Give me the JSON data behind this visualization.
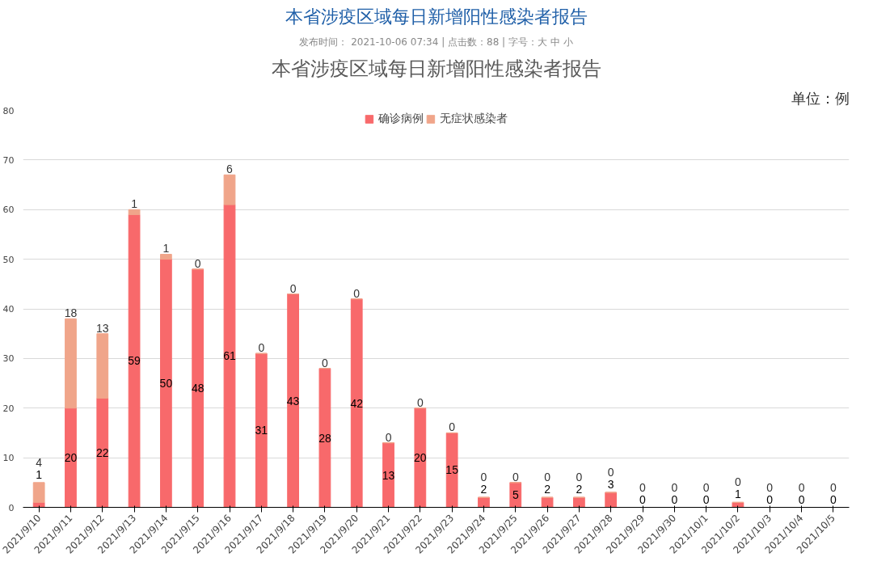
{
  "chart_data": {
    "type": "bar",
    "title": "本省涉疫区域每日新增阳性感染者报告",
    "annotations": [
      "本省涉疫区域每日新增阳性感染者报告",
      "发布时间： 2021-10-06 07:34 | 点击数：88 | 字号：大 中 小",
      "单位：例"
    ],
    "categories": [
      "2021/9/10",
      "2021/9/11",
      "2021/9/12",
      "2021/9/13",
      "2021/9/14",
      "2021/9/15",
      "2021/9/16",
      "2021/9/17",
      "2021/9/18",
      "2021/9/19",
      "2021/9/20",
      "2021/9/21",
      "2021/9/22",
      "2021/9/23",
      "2021/9/24",
      "2021/9/25",
      "2021/9/26",
      "2021/9/27",
      "2021/9/28",
      "2021/9/29",
      "2021/9/30",
      "2021/10/1",
      "2021/10/2",
      "2021/10/3",
      "2021/10/4",
      "2021/10/5"
    ],
    "series": [
      {
        "name": "确诊病例",
        "color": "#f8696b",
        "values": [
          1,
          20,
          22,
          59,
          50,
          48,
          61,
          31,
          43,
          28,
          42,
          13,
          20,
          15,
          2,
          5,
          2,
          2,
          3,
          0,
          0,
          0,
          1,
          0,
          0,
          0
        ]
      },
      {
        "name": "无症状感染者",
        "color": "#f0a58a",
        "values": [
          4,
          18,
          13,
          1,
          1,
          0,
          6,
          0,
          0,
          0,
          0,
          0,
          0,
          0,
          0,
          0,
          0,
          0,
          0,
          0,
          0,
          0,
          0,
          0,
          0,
          0
        ]
      }
    ],
    "stacked": true,
    "data_labels": true,
    "ylim": [
      0,
      80
    ],
    "yticks": [
      0,
      10,
      20,
      30,
      40,
      50,
      60,
      70,
      80
    ],
    "grid": "y",
    "legend": "top"
  }
}
